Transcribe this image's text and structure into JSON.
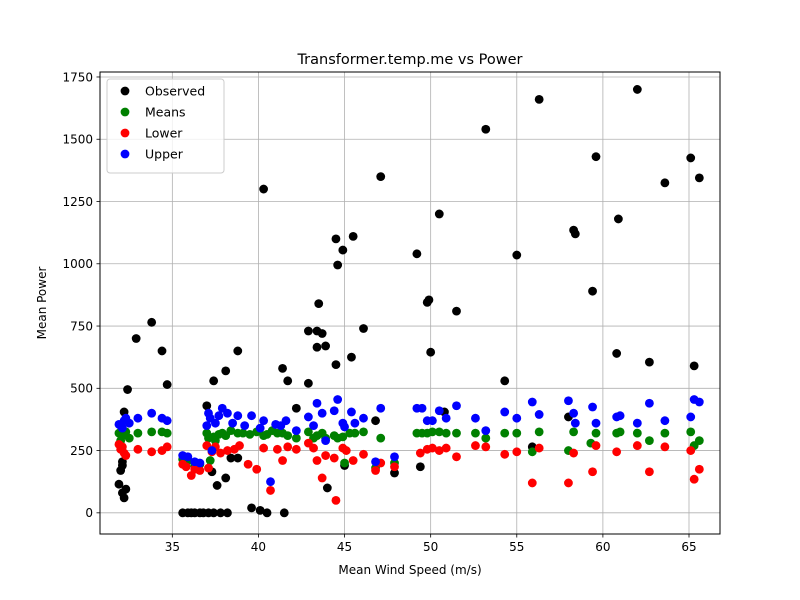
{
  "chart_data": {
    "type": "scatter",
    "title": "Transformer.temp.me vs Power",
    "xlabel": "Mean Wind Speed (m/s)",
    "ylabel": "Mean Power",
    "xlim": [
      30.8,
      66.8
    ],
    "ylim": [
      -85,
      1770
    ],
    "xticks": [
      35,
      40,
      45,
      50,
      55,
      60,
      65
    ],
    "xtick_labels": [
      "35",
      "40",
      "45",
      "50",
      "55",
      "60",
      "65"
    ],
    "yticks": [
      0,
      250,
      500,
      750,
      1000,
      1250,
      1500,
      1750
    ],
    "ytick_labels": [
      "0",
      "250",
      "500",
      "750",
      "1000",
      "1250",
      "1500",
      "1750"
    ],
    "grid": true,
    "legend_position": "top-left",
    "series": [
      {
        "name": "Observed",
        "color": "#000000",
        "points": [
          [
            31.9,
            115
          ],
          [
            32.0,
            170
          ],
          [
            32.1,
            190
          ],
          [
            32.1,
            205
          ],
          [
            32.2,
            405
          ],
          [
            32.1,
            80
          ],
          [
            32.2,
            60
          ],
          [
            32.3,
            95
          ],
          [
            32.4,
            495
          ],
          [
            32.9,
            700
          ],
          [
            33.8,
            765
          ],
          [
            34.4,
            650
          ],
          [
            34.7,
            515
          ],
          [
            35.6,
            0
          ],
          [
            35.9,
            0
          ],
          [
            36.1,
            0
          ],
          [
            36.3,
            0
          ],
          [
            36.6,
            0
          ],
          [
            36.8,
            0
          ],
          [
            37.1,
            0
          ],
          [
            37.4,
            0
          ],
          [
            37.8,
            0
          ],
          [
            38.2,
            0
          ],
          [
            37.0,
            430
          ],
          [
            37.4,
            530
          ],
          [
            38.1,
            570
          ],
          [
            37.3,
            165
          ],
          [
            37.6,
            110
          ],
          [
            38.1,
            140
          ],
          [
            38.4,
            220
          ],
          [
            38.8,
            650
          ],
          [
            38.8,
            220
          ],
          [
            39.6,
            20
          ],
          [
            40.1,
            10
          ],
          [
            40.3,
            1300
          ],
          [
            40.5,
            0
          ],
          [
            41.4,
            580
          ],
          [
            41.7,
            530
          ],
          [
            41.5,
            0
          ],
          [
            42.2,
            420
          ],
          [
            42.9,
            730
          ],
          [
            42.9,
            520
          ],
          [
            43.4,
            730
          ],
          [
            43.4,
            665
          ],
          [
            43.5,
            840
          ],
          [
            43.7,
            720
          ],
          [
            43.9,
            670
          ],
          [
            44.0,
            100
          ],
          [
            44.5,
            1100
          ],
          [
            44.6,
            995
          ],
          [
            44.5,
            595
          ],
          [
            44.9,
            1055
          ],
          [
            45.0,
            190
          ],
          [
            45.5,
            1110
          ],
          [
            45.4,
            625
          ],
          [
            46.1,
            740
          ],
          [
            46.8,
            370
          ],
          [
            47.1,
            1350
          ],
          [
            47.9,
            160
          ],
          [
            49.2,
            1040
          ],
          [
            49.4,
            185
          ],
          [
            49.8,
            845
          ],
          [
            49.9,
            855
          ],
          [
            50.0,
            645
          ],
          [
            50.5,
            1200
          ],
          [
            50.8,
            405
          ],
          [
            51.5,
            810
          ],
          [
            53.2,
            1540
          ],
          [
            54.3,
            530
          ],
          [
            55.0,
            1035
          ],
          [
            55.9,
            265
          ],
          [
            56.3,
            1660
          ],
          [
            58.0,
            385
          ],
          [
            58.3,
            1135
          ],
          [
            58.4,
            1120
          ],
          [
            59.4,
            890
          ],
          [
            59.6,
            1430
          ],
          [
            60.8,
            640
          ],
          [
            60.9,
            1180
          ],
          [
            62.0,
            1700
          ],
          [
            62.7,
            605
          ],
          [
            63.6,
            1325
          ],
          [
            65.1,
            1425
          ],
          [
            65.3,
            590
          ],
          [
            65.6,
            1345
          ]
        ]
      },
      {
        "name": "Means",
        "color": "#008000",
        "points": [
          [
            31.9,
            320
          ],
          [
            32.0,
            290
          ],
          [
            32.1,
            310
          ],
          [
            32.3,
            325
          ],
          [
            32.5,
            300
          ],
          [
            33.0,
            320
          ],
          [
            33.8,
            325
          ],
          [
            34.4,
            325
          ],
          [
            34.7,
            320
          ],
          [
            35.6,
            215
          ],
          [
            35.9,
            210
          ],
          [
            36.3,
            190
          ],
          [
            36.6,
            195
          ],
          [
            37.0,
            320
          ],
          [
            37.1,
            300
          ],
          [
            37.2,
            210
          ],
          [
            37.4,
            305
          ],
          [
            37.5,
            290
          ],
          [
            37.7,
            315
          ],
          [
            37.9,
            320
          ],
          [
            38.1,
            310
          ],
          [
            38.4,
            330
          ],
          [
            38.8,
            320
          ],
          [
            39.1,
            320
          ],
          [
            39.5,
            315
          ],
          [
            39.9,
            325
          ],
          [
            40.3,
            310
          ],
          [
            40.5,
            315
          ],
          [
            40.8,
            330
          ],
          [
            41.1,
            320
          ],
          [
            41.4,
            320
          ],
          [
            41.7,
            310
          ],
          [
            42.2,
            300
          ],
          [
            42.9,
            325
          ],
          [
            43.2,
            300
          ],
          [
            43.4,
            310
          ],
          [
            43.7,
            320
          ],
          [
            43.9,
            300
          ],
          [
            44.4,
            310
          ],
          [
            44.6,
            300
          ],
          [
            44.9,
            305
          ],
          [
            45.0,
            200
          ],
          [
            45.3,
            320
          ],
          [
            45.6,
            320
          ],
          [
            46.1,
            325
          ],
          [
            46.8,
            180
          ],
          [
            47.1,
            300
          ],
          [
            47.9,
            200
          ],
          [
            49.2,
            320
          ],
          [
            49.5,
            320
          ],
          [
            49.8,
            320
          ],
          [
            50.1,
            325
          ],
          [
            50.5,
            325
          ],
          [
            50.9,
            320
          ],
          [
            51.5,
            320
          ],
          [
            52.6,
            320
          ],
          [
            53.2,
            300
          ],
          [
            54.3,
            320
          ],
          [
            55.0,
            320
          ],
          [
            55.9,
            245
          ],
          [
            56.3,
            325
          ],
          [
            58.0,
            250
          ],
          [
            58.3,
            325
          ],
          [
            59.3,
            280
          ],
          [
            59.6,
            320
          ],
          [
            60.8,
            320
          ],
          [
            61.0,
            325
          ],
          [
            62.0,
            320
          ],
          [
            62.7,
            290
          ],
          [
            63.6,
            320
          ],
          [
            65.1,
            325
          ],
          [
            65.3,
            270
          ],
          [
            65.6,
            290
          ]
        ]
      },
      {
        "name": "Lower",
        "color": "#ff0000",
        "points": [
          [
            31.9,
            275
          ],
          [
            32.0,
            255
          ],
          [
            32.1,
            265
          ],
          [
            32.2,
            240
          ],
          [
            32.3,
            230
          ],
          [
            33.0,
            255
          ],
          [
            33.8,
            245
          ],
          [
            34.4,
            250
          ],
          [
            34.7,
            265
          ],
          [
            35.6,
            195
          ],
          [
            35.8,
            185
          ],
          [
            36.1,
            150
          ],
          [
            36.3,
            175
          ],
          [
            36.6,
            170
          ],
          [
            37.0,
            270
          ],
          [
            37.1,
            180
          ],
          [
            37.3,
            245
          ],
          [
            37.5,
            265
          ],
          [
            37.8,
            240
          ],
          [
            38.2,
            250
          ],
          [
            38.6,
            255
          ],
          [
            38.9,
            270
          ],
          [
            39.4,
            195
          ],
          [
            39.9,
            175
          ],
          [
            40.3,
            260
          ],
          [
            40.7,
            90
          ],
          [
            41.1,
            255
          ],
          [
            41.4,
            210
          ],
          [
            41.7,
            265
          ],
          [
            42.2,
            255
          ],
          [
            42.9,
            280
          ],
          [
            43.2,
            260
          ],
          [
            43.4,
            210
          ],
          [
            43.7,
            140
          ],
          [
            43.9,
            230
          ],
          [
            44.4,
            220
          ],
          [
            44.5,
            50
          ],
          [
            44.9,
            260
          ],
          [
            45.1,
            250
          ],
          [
            45.5,
            210
          ],
          [
            46.1,
            235
          ],
          [
            46.8,
            170
          ],
          [
            47.1,
            200
          ],
          [
            47.9,
            185
          ],
          [
            49.4,
            240
          ],
          [
            49.8,
            255
          ],
          [
            50.1,
            260
          ],
          [
            50.5,
            250
          ],
          [
            50.9,
            260
          ],
          [
            51.5,
            225
          ],
          [
            52.6,
            270
          ],
          [
            53.2,
            265
          ],
          [
            54.3,
            235
          ],
          [
            55.0,
            245
          ],
          [
            55.9,
            120
          ],
          [
            56.3,
            260
          ],
          [
            58.0,
            120
          ],
          [
            58.3,
            240
          ],
          [
            59.4,
            165
          ],
          [
            59.6,
            270
          ],
          [
            60.8,
            245
          ],
          [
            62.0,
            270
          ],
          [
            62.7,
            165
          ],
          [
            63.6,
            265
          ],
          [
            65.1,
            250
          ],
          [
            65.3,
            135
          ],
          [
            65.6,
            175
          ]
        ]
      },
      {
        "name": "Upper",
        "color": "#0000ff",
        "points": [
          [
            31.9,
            355
          ],
          [
            32.0,
            350
          ],
          [
            32.1,
            340
          ],
          [
            32.2,
            370
          ],
          [
            32.3,
            380
          ],
          [
            32.5,
            360
          ],
          [
            33.0,
            380
          ],
          [
            33.8,
            400
          ],
          [
            34.4,
            380
          ],
          [
            34.7,
            370
          ],
          [
            35.6,
            230
          ],
          [
            35.9,
            225
          ],
          [
            36.3,
            205
          ],
          [
            36.6,
            200
          ],
          [
            37.0,
            350
          ],
          [
            37.1,
            400
          ],
          [
            37.2,
            380
          ],
          [
            37.3,
            250
          ],
          [
            37.5,
            360
          ],
          [
            37.7,
            390
          ],
          [
            37.9,
            420
          ],
          [
            38.2,
            400
          ],
          [
            38.5,
            360
          ],
          [
            38.8,
            390
          ],
          [
            39.2,
            350
          ],
          [
            39.6,
            390
          ],
          [
            40.1,
            340
          ],
          [
            40.3,
            370
          ],
          [
            40.7,
            125
          ],
          [
            41.0,
            355
          ],
          [
            41.3,
            350
          ],
          [
            41.6,
            370
          ],
          [
            42.2,
            330
          ],
          [
            42.9,
            385
          ],
          [
            43.2,
            350
          ],
          [
            43.4,
            440
          ],
          [
            43.7,
            400
          ],
          [
            43.9,
            290
          ],
          [
            44.4,
            410
          ],
          [
            44.6,
            455
          ],
          [
            44.9,
            360
          ],
          [
            45.0,
            345
          ],
          [
            45.4,
            405
          ],
          [
            45.6,
            360
          ],
          [
            46.1,
            380
          ],
          [
            46.8,
            205
          ],
          [
            47.1,
            420
          ],
          [
            47.9,
            225
          ],
          [
            49.2,
            420
          ],
          [
            49.5,
            420
          ],
          [
            49.8,
            370
          ],
          [
            50.1,
            370
          ],
          [
            50.5,
            410
          ],
          [
            50.9,
            380
          ],
          [
            51.5,
            430
          ],
          [
            52.6,
            380
          ],
          [
            53.2,
            330
          ],
          [
            54.3,
            405
          ],
          [
            55.0,
            380
          ],
          [
            55.9,
            445
          ],
          [
            56.3,
            395
          ],
          [
            58.0,
            450
          ],
          [
            58.3,
            400
          ],
          [
            58.4,
            360
          ],
          [
            59.4,
            425
          ],
          [
            59.6,
            360
          ],
          [
            60.8,
            385
          ],
          [
            61.0,
            390
          ],
          [
            62.0,
            360
          ],
          [
            62.7,
            440
          ],
          [
            63.6,
            370
          ],
          [
            65.1,
            385
          ],
          [
            65.3,
            455
          ],
          [
            65.6,
            445
          ]
        ]
      }
    ]
  }
}
